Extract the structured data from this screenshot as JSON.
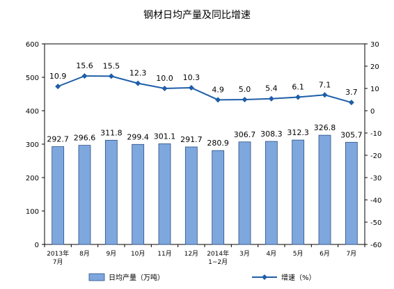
{
  "chart_data": {
    "type": "bar+line",
    "title": "钢材日均产量及同比增速",
    "categories": [
      [
        "2013年",
        "7月"
      ],
      [
        "8月"
      ],
      [
        "9月"
      ],
      [
        "10月"
      ],
      [
        "11月"
      ],
      [
        "12月"
      ],
      [
        "2014年",
        "1~2月"
      ],
      [
        "3月"
      ],
      [
        "4月"
      ],
      [
        "5月"
      ],
      [
        "6月"
      ],
      [
        "7月"
      ]
    ],
    "series": [
      {
        "name": "日均产量（万吨）",
        "type": "bar",
        "axis": "left",
        "values": [
          292.7,
          296.6,
          311.8,
          299.4,
          301.1,
          291.7,
          280.9,
          306.7,
          308.3,
          312.3,
          326.8,
          305.7
        ],
        "labels": [
          "292.7",
          "296.6",
          "311.8",
          "299.4",
          "301.1",
          "291.7",
          "280.9",
          "306.7",
          "308.3",
          "312.3",
          "326.8",
          "305.7"
        ],
        "color": "#7ea7de",
        "border": "#2b4f86"
      },
      {
        "name": "增速（%）",
        "type": "line",
        "axis": "right",
        "values": [
          10.9,
          15.6,
          15.5,
          12.3,
          10.0,
          10.3,
          4.9,
          5.0,
          5.4,
          6.1,
          7.1,
          3.7
        ],
        "labels": [
          "10.9",
          "15.6",
          "15.5",
          "12.3",
          "10.0",
          "10.3",
          "4.9",
          "5.0",
          "5.4",
          "6.1",
          "7.1",
          "3.7"
        ],
        "color": "#1f5ea8"
      }
    ],
    "y_left": {
      "min": 0,
      "max": 600,
      "ticks": [
        "0",
        "100",
        "200",
        "300",
        "400",
        "500",
        "600"
      ]
    },
    "y_right": {
      "min": -60,
      "max": 30,
      "ticks": [
        "-60",
        "-50",
        "-40",
        "-30",
        "-20",
        "-10",
        "0",
        "10",
        "20",
        "30"
      ]
    },
    "grid": false,
    "legend_position": "bottom"
  }
}
